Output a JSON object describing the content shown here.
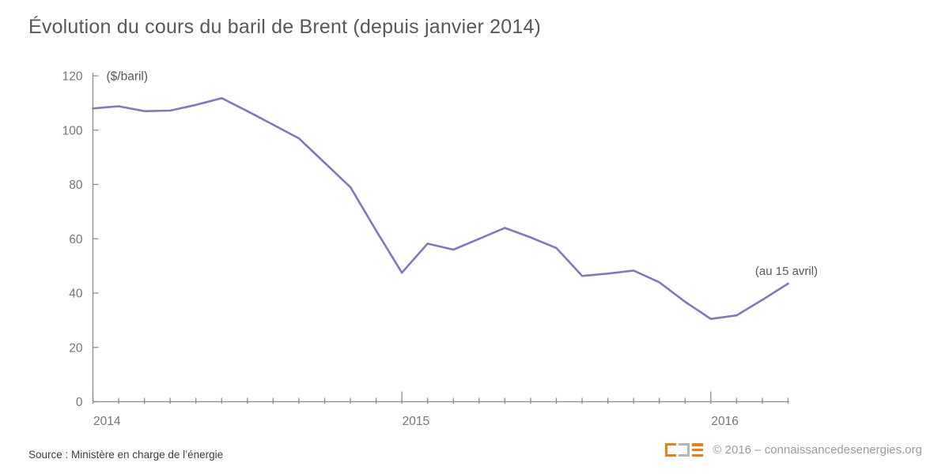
{
  "title": "Évolution du cours du baril de Brent (depuis janvier 2014)",
  "chart_data": {
    "type": "line",
    "title": "Évolution du cours du baril de Brent (depuis janvier 2014)",
    "ylabel": "($/baril)",
    "xlabel": "",
    "ylim": [
      0,
      120
    ],
    "y_ticks": [
      0,
      20,
      40,
      60,
      80,
      100,
      120
    ],
    "x_tick_years": [
      "2014",
      "2015",
      "2016"
    ],
    "x_frequency": "monthly",
    "grid": false,
    "legend_position": "none",
    "series": [
      {
        "name": "Cours du baril de Brent ($/baril)",
        "x": [
          "2014-01",
          "2014-02",
          "2014-03",
          "2014-04",
          "2014-05",
          "2014-06",
          "2014-07",
          "2014-08",
          "2014-09",
          "2014-10",
          "2014-11",
          "2014-12",
          "2015-01",
          "2015-02",
          "2015-03",
          "2015-04",
          "2015-05",
          "2015-06",
          "2015-07",
          "2015-08",
          "2015-09",
          "2015-10",
          "2015-11",
          "2015-12",
          "2016-01",
          "2016-02",
          "2016-03",
          "2016-04"
        ],
        "values": [
          108,
          108.8,
          107,
          107.2,
          109.3,
          111.8,
          107,
          102,
          97,
          88,
          79,
          63,
          47.5,
          58.2,
          56,
          60,
          64,
          60.5,
          56.6,
          46.3,
          47.2,
          48.3,
          44,
          36.8,
          30.5,
          31.8,
          37.5,
          43.5
        ]
      }
    ],
    "annotation": {
      "text": "(au 15 avril)",
      "attached_to": "2016-04"
    }
  },
  "footer": {
    "source": "Source : Ministère en charge de l’énergie",
    "copyright": "© 2016 – connaissancedesenergies.org",
    "logo_glyphs": [
      "open-bracket",
      "close-bracket",
      "triple-bar"
    ]
  },
  "colors": {
    "line": "#7F78BB",
    "axis": "#8C8C8C",
    "tick_label": "#757575",
    "title_text": "#58585B",
    "annotation_text": "#58585B",
    "source_text": "#3D3D3D",
    "copyright_text": "#9B9B9B",
    "logo_orange": "#EE7D17",
    "logo_gray": "#B5B5B5"
  }
}
